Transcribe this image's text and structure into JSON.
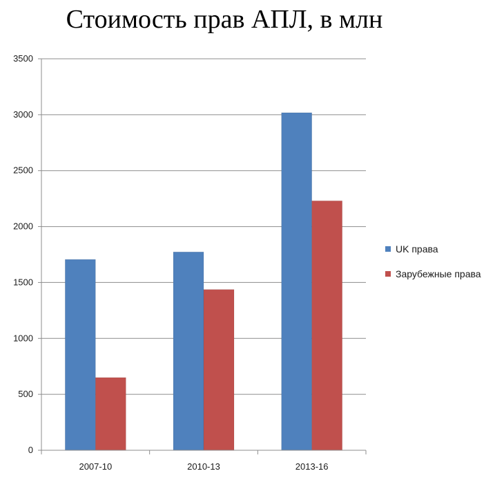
{
  "chart_data": {
    "type": "bar",
    "title": "Стоимость прав АПЛ, в млн",
    "categories": [
      "2007-10",
      "2010-13",
      "2013-16"
    ],
    "series": [
      {
        "name": "UK права",
        "values": [
          1706,
          1773,
          3018
        ],
        "color": "#4f81bd"
      },
      {
        "name": "Зарубежные права",
        "values": [
          650,
          1437,
          2230
        ],
        "color": "#c0504d"
      }
    ],
    "ylim": [
      0,
      3500
    ],
    "yticks": [
      "0",
      "500",
      "1000",
      "1500",
      "2000",
      "2500",
      "3000",
      "3500"
    ],
    "grid": true,
    "legend": "right"
  }
}
